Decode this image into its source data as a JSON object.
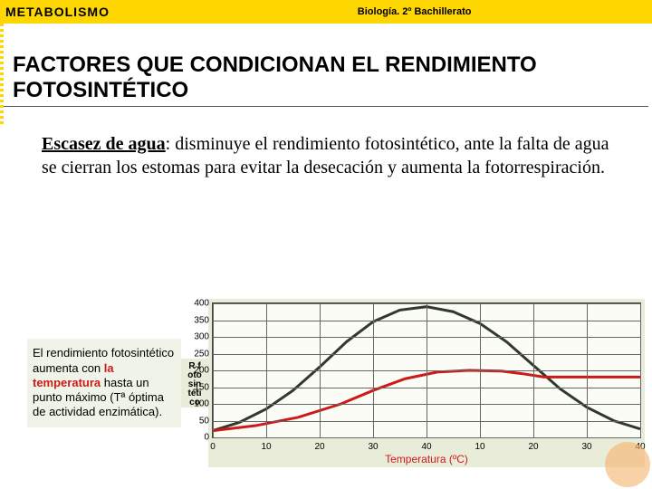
{
  "header": {
    "left": "METABOLISMO",
    "right": "Biología. 2º Bachillerato"
  },
  "title": "FACTORES  QUE CONDICIONAN EL RENDIMIENTO FOTOSINTÉTICO",
  "body": {
    "lead": "Escasez de agua",
    "rest": ": disminuye el rendimiento fotosintético, ante la falta de agua se cierran los estomas para evitar la desecación y aumenta la fotorrespiración."
  },
  "note": {
    "pre": "El rendimiento fotosintético aumenta con ",
    "highlight": "la temperatura",
    "post": " hasta un punto máximo (Tª óptima de actividad enzimática)."
  },
  "chart": {
    "type": "line",
    "ylabel_lines": [
      "R f",
      "oto",
      "sin",
      "téti",
      "co"
    ],
    "ylim": [
      0,
      400
    ],
    "ytick_step": 50,
    "yticks": [
      0,
      50,
      100,
      150,
      200,
      250,
      300,
      350,
      400
    ],
    "xlim": [
      0,
      80
    ],
    "xticks": [
      0,
      10,
      20,
      30,
      40,
      50,
      60,
      70,
      80
    ],
    "xtick_labels": [
      "0",
      "10",
      "20",
      "30",
      "40",
      "10",
      "20",
      "30",
      "40"
    ],
    "xlabel": "Temperatura (ºC)",
    "background_color": "#fbfcf6",
    "panel_color": "#e9ecd8",
    "grid_color": "#666666",
    "series": [
      {
        "name": "dark",
        "color": "#2f3a2a",
        "width": 3,
        "points": [
          [
            0,
            20
          ],
          [
            5,
            45
          ],
          [
            10,
            85
          ],
          [
            15,
            140
          ],
          [
            20,
            210
          ],
          [
            25,
            285
          ],
          [
            30,
            345
          ],
          [
            35,
            380
          ],
          [
            40,
            390
          ],
          [
            45,
            375
          ],
          [
            50,
            340
          ],
          [
            55,
            285
          ],
          [
            60,
            215
          ],
          [
            65,
            145
          ],
          [
            70,
            90
          ],
          [
            75,
            50
          ],
          [
            80,
            25
          ]
        ]
      },
      {
        "name": "red",
        "color": "#cc1a1a",
        "width": 3,
        "points": [
          [
            0,
            20
          ],
          [
            8,
            35
          ],
          [
            16,
            60
          ],
          [
            24,
            100
          ],
          [
            30,
            140
          ],
          [
            36,
            175
          ],
          [
            42,
            195
          ],
          [
            48,
            200
          ],
          [
            54,
            198
          ],
          [
            58,
            190
          ],
          [
            62,
            180
          ],
          [
            66,
            180
          ],
          [
            70,
            180
          ],
          [
            75,
            180
          ],
          [
            80,
            180
          ]
        ]
      }
    ]
  }
}
